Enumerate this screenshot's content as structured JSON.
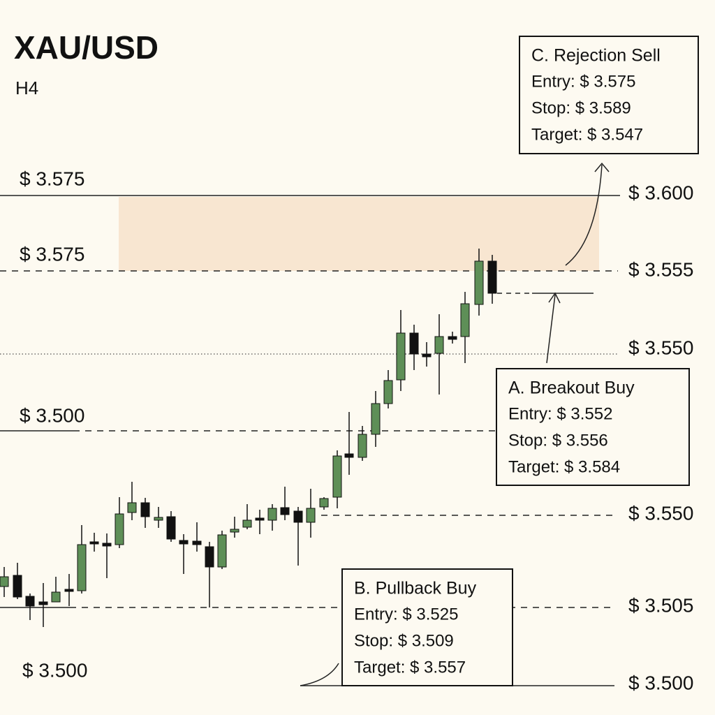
{
  "title": "XAU/USD",
  "timeframe": "H4",
  "left_labels": [
    "$ 3.575",
    "$ 3.575",
    "$ 3.500",
    "$ 3.500"
  ],
  "right_labels": [
    "$ 3.600",
    "$ 3.555",
    "$ 3.550",
    "$ 3.550",
    "$ 3.505",
    "$ 3.500"
  ],
  "trade_boxes": [
    {
      "heading": "C. Rejection Sell",
      "lines": [
        "Entry: $ 3.575",
        "Stop: $ 3.589",
        "Target: $ 3.547"
      ]
    },
    {
      "heading": "A. Breakout Buy",
      "lines": [
        "Entry: $ 3.552",
        "Stop: $ 3.556",
        "Target: $ 3.584"
      ]
    },
    {
      "heading": "B. Pullback Buy",
      "lines": [
        "Entry: $ 3.525",
        "Stop: $ 3.509",
        "Target: $ 3.557"
      ]
    }
  ]
}
